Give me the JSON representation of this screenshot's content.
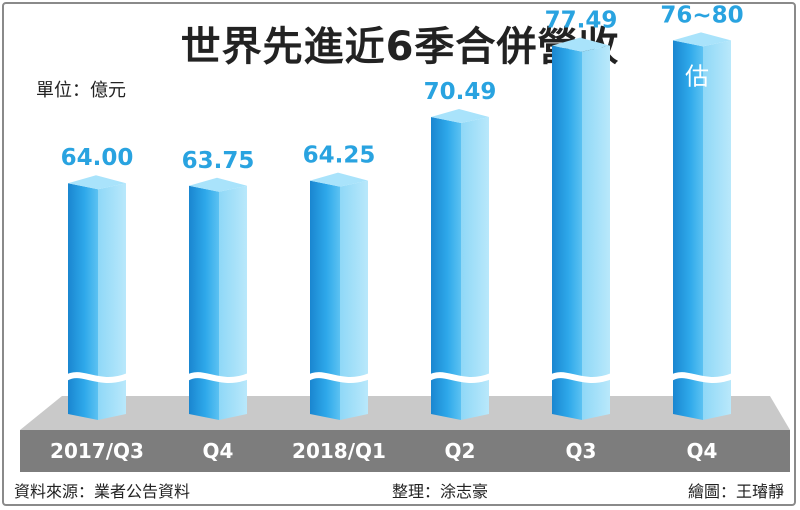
{
  "title": "世界先進近6季合併營收",
  "unit_label": "單位：億元",
  "footer": {
    "source": "資料來源：業者公告資料",
    "editor": "整理：涂志豪",
    "illustrator": "繪圖：王璿靜"
  },
  "colors": {
    "bar_main": "#1e8fd6",
    "bar_light": "#7fd0f5",
    "value_text": "#29a3e0",
    "base": "#7d7d7d"
  },
  "chart_data": {
    "type": "bar",
    "categories": [
      "2017/Q3",
      "Q4",
      "2018/Q1",
      "Q2",
      "Q3",
      "Q4"
    ],
    "values": [
      64.0,
      63.75,
      64.25,
      70.49,
      77.49,
      78
    ],
    "value_labels": [
      "64.00",
      "63.75",
      "64.25",
      "70.49",
      "77.49",
      "76~80"
    ],
    "estimate_index": 5,
    "estimate_label": "估",
    "axis_break": true,
    "title": "世界先進近6季合併營收",
    "ylabel": "單位：億元",
    "grid": false,
    "legend": "none"
  }
}
